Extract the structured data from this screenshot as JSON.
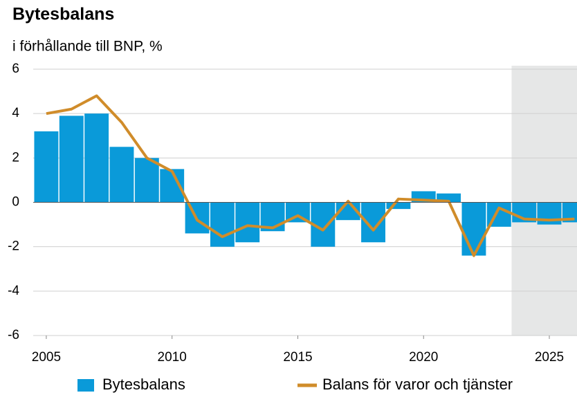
{
  "chart_data": {
    "type": "bar_line",
    "title": "Bytesbalans",
    "subtitle": "i förhållande till BNP, %",
    "x": [
      2005,
      2006,
      2007,
      2008,
      2009,
      2010,
      2011,
      2012,
      2013,
      2014,
      2015,
      2016,
      2017,
      2018,
      2019,
      2020,
      2021,
      2022,
      2023,
      2024,
      2025,
      2026
    ],
    "series": [
      {
        "name": "Bytesbalans",
        "type": "bar",
        "color": "#0a9ad9",
        "values": [
          3.2,
          3.9,
          4.0,
          2.5,
          2.0,
          1.5,
          -1.4,
          -2.0,
          -1.8,
          -1.3,
          -0.9,
          -2.0,
          -0.8,
          -1.8,
          -0.3,
          0.5,
          0.4,
          -2.4,
          -1.1,
          -0.9,
          -1.0,
          -0.9
        ]
      },
      {
        "name": "Balans för varor och tjänster",
        "type": "line",
        "color": "#d08c2a",
        "values": [
          4.0,
          4.2,
          4.8,
          3.6,
          2.0,
          1.4,
          -0.8,
          -1.55,
          -1.05,
          -1.15,
          -0.6,
          -1.25,
          0.05,
          -1.25,
          0.15,
          0.1,
          0.05,
          -2.4,
          -0.25,
          -0.75,
          -0.8,
          -0.75
        ]
      }
    ],
    "xlim": [
      2004.48,
      2026.1
    ],
    "xticks": [
      2005,
      2010,
      2015,
      2020,
      2025
    ],
    "ylim": [
      -6,
      6
    ],
    "yticks": [
      -6,
      -4,
      -2,
      0,
      2,
      4,
      6
    ],
    "grid": true,
    "shaded_region": [
      2023.5,
      2026.1
    ],
    "legend": "bottom"
  }
}
